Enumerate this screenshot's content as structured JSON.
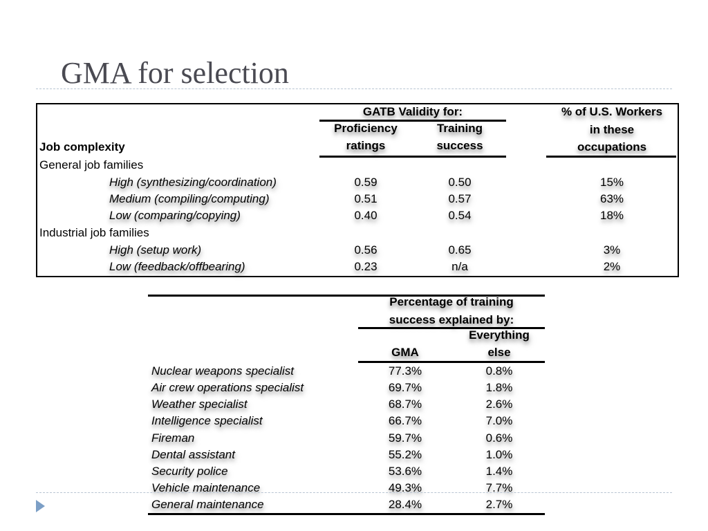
{
  "slide": {
    "title": "GMA for selection"
  },
  "table1": {
    "header": {
      "group": "GATB Validity for:",
      "col_proficiency": [
        "Proficiency",
        "ratings"
      ],
      "col_training": [
        "Training",
        "success"
      ],
      "col_workers": [
        "% of U.S. Workers",
        "in these",
        "occupations"
      ],
      "row_header": "Job complexity"
    },
    "sections": [
      {
        "label": "General job families",
        "rows": [
          {
            "name": "High (synthesizing/coordination)",
            "proficiency": "0.59",
            "training": "0.50",
            "workers": "15%"
          },
          {
            "name": "Medium (compiling/computing)",
            "proficiency": "0.51",
            "training": "0.57",
            "workers": "63%"
          },
          {
            "name": "Low (comparing/copying)",
            "proficiency": "0.40",
            "training": "0.54",
            "workers": "18%"
          }
        ]
      },
      {
        "label": "Industrial job families",
        "rows": [
          {
            "name": "High (setup work)",
            "proficiency": "0.56",
            "training": "0.65",
            "workers": "3%"
          },
          {
            "name": "Low (feedback/offbearing)",
            "proficiency": "0.23",
            "training": "n/a",
            "workers": "2%"
          }
        ]
      }
    ]
  },
  "table2": {
    "header": {
      "group": [
        "Percentage of training",
        "success explained by:"
      ],
      "col_gma": "GMA",
      "col_else": [
        "Everything",
        "else"
      ]
    },
    "rows": [
      {
        "name": "Nuclear weapons specialist",
        "gma": "77.3%",
        "else": "0.8%"
      },
      {
        "name": "Air crew operations specialist",
        "gma": "69.7%",
        "else": "1.8%"
      },
      {
        "name": "Weather specialist",
        "gma": "68.7%",
        "else": "2.6%"
      },
      {
        "name": "Intelligence specialist",
        "gma": "66.7%",
        "else": "7.0%"
      },
      {
        "name": "Fireman",
        "gma": "59.7%",
        "else": "0.6%"
      },
      {
        "name": "Dental assistant",
        "gma": "55.2%",
        "else": "1.0%"
      },
      {
        "name": "Security police",
        "gma": "53.6%",
        "else": "1.4%"
      },
      {
        "name": "Vehicle maintenance",
        "gma": "49.3%",
        "else": "7.7%"
      },
      {
        "name": "General maintenance",
        "gma": "28.4%",
        "else": "2.7%"
      }
    ]
  },
  "colors": {
    "title": "#4a4a52",
    "rule": "#b8c4d2",
    "bullet": "#7c9fc6"
  }
}
